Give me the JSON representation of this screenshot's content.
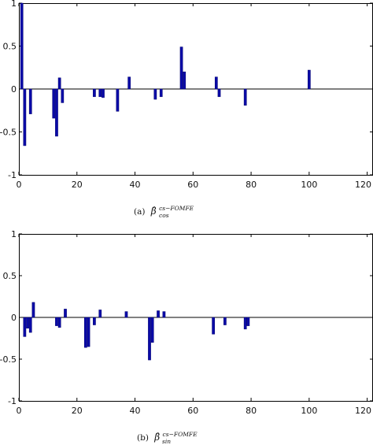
{
  "chart_data": [
    {
      "type": "bar",
      "caption": "(a) β̂cos^{cs−FOMFE}",
      "caption_parts": {
        "prefix": "(a)",
        "symbol": "β̂",
        "superscript": "cs−FOMFE",
        "subscript": "cos"
      },
      "xlim": [
        0,
        122
      ],
      "ylim": [
        -1,
        1
      ],
      "xticks": [
        0,
        20,
        40,
        60,
        80,
        100,
        120
      ],
      "yticks": [
        -1,
        -0.5,
        0,
        0.5,
        1
      ],
      "xtick_labels": [
        "0",
        "20",
        "40",
        "60",
        "80",
        "100",
        "120"
      ],
      "ytick_labels": [
        "-1",
        "-0.5",
        "0",
        "0.5",
        "1"
      ],
      "bar_color": "#0a0aa8",
      "x": [
        1,
        2,
        4,
        12,
        13,
        14,
        15,
        26,
        28,
        29,
        34,
        38,
        47,
        49,
        56,
        57,
        68,
        69,
        78,
        100
      ],
      "values": [
        1.0,
        -0.66,
        -0.29,
        -0.34,
        -0.55,
        0.13,
        -0.16,
        -0.09,
        -0.09,
        -0.1,
        -0.26,
        0.14,
        -0.12,
        -0.09,
        0.49,
        0.2,
        0.14,
        -0.09,
        -0.19,
        0.22
      ]
    },
    {
      "type": "bar",
      "caption": "(b) β̂sin^{cs−FOMFE}",
      "caption_parts": {
        "prefix": "(b)",
        "symbol": "β̂",
        "superscript": "cs−FOMFE",
        "subscript": "sin"
      },
      "xlim": [
        0,
        122
      ],
      "ylim": [
        -1,
        1
      ],
      "xticks": [
        0,
        20,
        40,
        60,
        80,
        100,
        120
      ],
      "yticks": [
        -1,
        -0.5,
        0,
        0.5,
        1
      ],
      "xtick_labels": [
        "0",
        "20",
        "40",
        "60",
        "80",
        "100",
        "120"
      ],
      "ytick_labels": [
        "-1",
        "-0.5",
        "0",
        "0.5",
        "1"
      ],
      "bar_color": "#0a0aa8",
      "x": [
        2,
        3,
        4,
        5,
        13,
        14,
        16,
        23,
        24,
        26,
        28,
        37,
        45,
        46,
        48,
        50,
        67,
        71,
        78,
        79
      ],
      "values": [
        -0.23,
        -0.13,
        -0.18,
        0.18,
        -0.1,
        -0.12,
        0.1,
        -0.36,
        -0.35,
        -0.09,
        0.09,
        0.07,
        -0.51,
        -0.3,
        0.08,
        0.07,
        -0.2,
        -0.09,
        -0.14,
        -0.1
      ]
    }
  ]
}
